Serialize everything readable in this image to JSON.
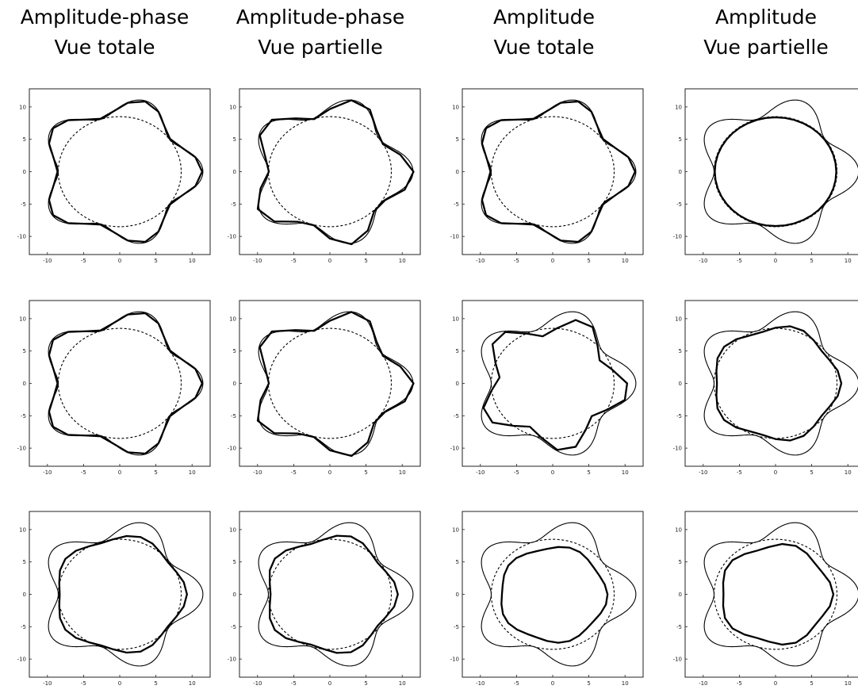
{
  "chart_data": {
    "type": "line",
    "description_grid": "3 rows x 4 columns of shape-reconstruction plots",
    "column_titles": [
      [
        "Amplitude-phase",
        "Vue totale"
      ],
      [
        "Amplitude-phase",
        "Vue partielle"
      ],
      [
        "Amplitude",
        "Vue totale"
      ],
      [
        "Amplitude",
        "Vue partielle"
      ]
    ],
    "xlim": [
      -12.5,
      12.5
    ],
    "ylim": [
      -12.8,
      12.8
    ],
    "x_ticks": [
      -10,
      -5,
      0,
      5,
      10
    ],
    "y_ticks": [
      10,
      5,
      0,
      -5,
      -10
    ],
    "x_tick_labels": [
      "-10",
      "-5",
      "0",
      "5",
      "10"
    ],
    "y_tick_labels": [
      "10",
      "5",
      "0",
      "-5",
      "-10"
    ],
    "reference_shape": {
      "style": "thin solid",
      "r0": 10,
      "amplitude": 1.5,
      "lobes": 5,
      "phase_deg": 0
    },
    "initial_guess": {
      "style": "dashed",
      "radius": 8.5
    },
    "reconstructions": [
      [
        {
          "r0": 10,
          "amplitude": 1.4,
          "lobes": 5,
          "phase_deg": 0,
          "polygon_sides": 30
        },
        {
          "r0": 10,
          "amplitude": 1.6,
          "lobes": 5,
          "phase_deg": 12,
          "polygon_sides": 24
        },
        {
          "r0": 10,
          "amplitude": 1.4,
          "lobes": 5,
          "phase_deg": 0,
          "polygon_sides": 30
        },
        {
          "r0": 8.4,
          "amplitude": 0.0,
          "lobes": 5,
          "phase_deg": 0,
          "polygon_sides": 40
        }
      ],
      [
        {
          "r0": 10,
          "amplitude": 1.4,
          "lobes": 5,
          "phase_deg": 0,
          "polygon_sides": 30
        },
        {
          "r0": 10,
          "amplitude": 1.6,
          "lobes": 5,
          "phase_deg": 12,
          "polygon_sides": 24
        },
        {
          "r0": 9,
          "amplitude": 1.6,
          "lobes": 5,
          "phase_deg": 36,
          "polygon_sides": 25
        },
        {
          "r0": 8.6,
          "amplitude": 0.5,
          "lobes": 5,
          "phase_deg": 0,
          "polygon_sides": 28
        }
      ],
      [
        {
          "r0": 8.8,
          "amplitude": 0.5,
          "lobes": 5,
          "phase_deg": 0,
          "polygon_sides": 30
        },
        {
          "r0": 8.8,
          "amplitude": 0.6,
          "lobes": 5,
          "phase_deg": 0,
          "polygon_sides": 30
        },
        {
          "r0": 7.3,
          "amplitude": 0.3,
          "lobes": 5,
          "phase_deg": 20,
          "polygon_sides": 30
        },
        {
          "r0": 7.6,
          "amplitude": 0.4,
          "lobes": 5,
          "phase_deg": 0,
          "polygon_sides": 26
        }
      ]
    ]
  }
}
